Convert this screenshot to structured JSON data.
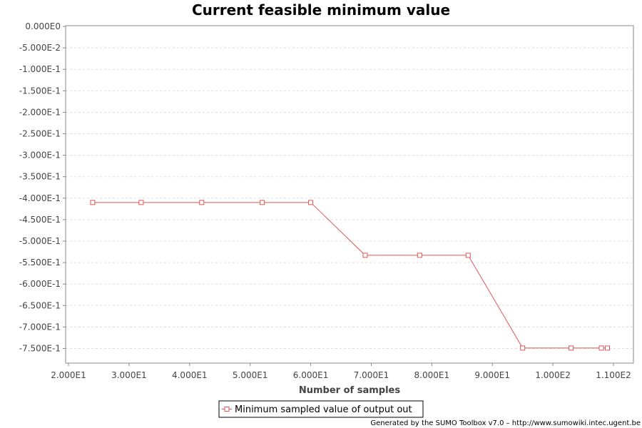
{
  "chart_data": {
    "type": "line",
    "title": "Current feasible minimum value",
    "xlabel": "Number of samples",
    "ylabel": "",
    "xlim": [
      20,
      110
    ],
    "ylim": [
      -0.79,
      0
    ],
    "x_ticks": [
      20,
      30,
      40,
      50,
      60,
      70,
      80,
      90,
      100,
      110
    ],
    "x_tick_labels": [
      "2.000E1",
      "3.000E1",
      "4.000E1",
      "5.000E1",
      "6.000E1",
      "7.000E1",
      "8.000E1",
      "9.000E1",
      "1.000E2",
      "1.100E2"
    ],
    "y_ticks": [
      0,
      -0.05,
      -0.1,
      -0.15,
      -0.2,
      -0.25,
      -0.3,
      -0.35,
      -0.4,
      -0.45,
      -0.5,
      -0.55,
      -0.6,
      -0.65,
      -0.7,
      -0.75
    ],
    "y_tick_labels": [
      "0.000E0",
      "-5.000E-2",
      "-1.000E-1",
      "-1.500E-1",
      "-2.000E-1",
      "-2.500E-1",
      "-3.000E-1",
      "-3.500E-1",
      "-4.000E-1",
      "-4.500E-1",
      "-5.000E-1",
      "-5.500E-1",
      "-6.000E-1",
      "-6.500E-1",
      "-7.000E-1",
      "-7.500E-1"
    ],
    "grid": true,
    "legend_position": "bottom-center",
    "series": [
      {
        "name": "Minimum sampled value of output out",
        "color": "#e05555",
        "marker": "square",
        "x": [
          24,
          32,
          42,
          52,
          60,
          69,
          78,
          86,
          95,
          103,
          108,
          109
        ],
        "y": [
          -0.41,
          -0.41,
          -0.41,
          -0.41,
          -0.41,
          -0.533,
          -0.533,
          -0.533,
          -0.749,
          -0.749,
          -0.749,
          -0.749
        ]
      }
    ]
  },
  "footer": "Generated by the SUMO Toolbox v7.0 – http://www.sumowiki.intec.ugent.be"
}
